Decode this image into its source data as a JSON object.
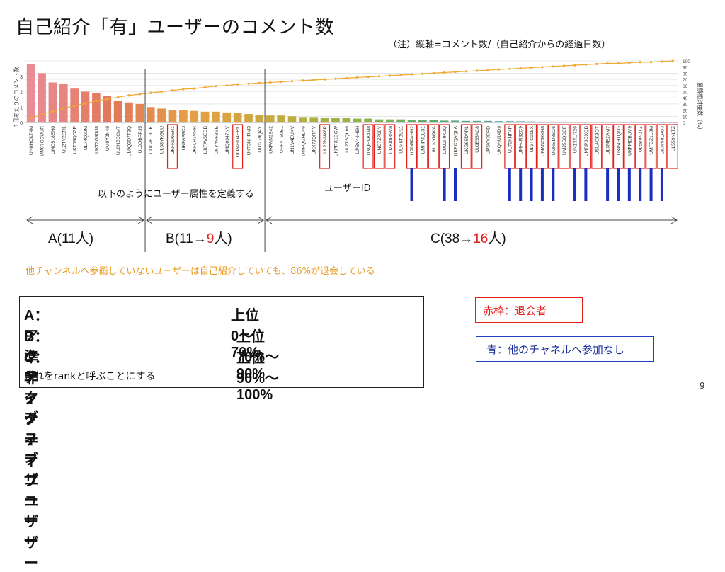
{
  "title": "自己紹介「有」ユーザーのコメント数",
  "note": "（注）縦軸=コメント数/（自己紹介からの経過日数）",
  "define_text": "以下のようにユーザー属性を定義する",
  "userid_label": "ユーザーID",
  "groups": {
    "a": {
      "prefix": "A(11人)",
      "mid": "",
      "highlight": "",
      "suffix": ""
    },
    "b": {
      "prefix": "B(11→",
      "highlight": "9",
      "suffix": "人)"
    },
    "c": {
      "prefix": "C(38→",
      "highlight": "16",
      "suffix": "人)"
    }
  },
  "orange_note": "他チャンネルへ参画していないユーザーは自己紹介していても、86%が退会している",
  "definitions": [
    {
      "name": "A：アクティブユーザー",
      "range": "上位0〜70%"
    },
    {
      "name": "B：準アクティブユーザー",
      "range": "上位70%〜90%"
    },
    {
      "name": "C：非アクティブユーザー",
      "range": "上位90%〜100%"
    }
  ],
  "rank_note": "これをrankと呼ぶことにする",
  "legend_red": "赤枠：退会者",
  "legend_blue": "青：他のチャネルへ参加なし",
  "page_number": "9",
  "colors": {
    "red": "#e0201b",
    "blue": "#1a2fc0",
    "orange_line": "#f0a830",
    "orange_text": "#e89a1e"
  },
  "chart_data": {
    "type": "bar",
    "ylabel_left": "1日あたりのコメント数",
    "ylabel_right": "累積相対度数（%）",
    "ylim_left": [
      0,
      4
    ],
    "yticks_left": [
      "0",
      "1",
      "2",
      "3"
    ],
    "ylim_right": [
      0,
      100
    ],
    "yticks_right": [
      "0",
      "10",
      "20",
      "30",
      "40",
      "50",
      "60",
      "70",
      "80",
      "90",
      "100"
    ],
    "categories": [
      "UN0HCK74M",
      "UM07CDUUR",
      "UMC518EN0",
      "UL2TY2ERL",
      "UKT59QD3P",
      "UL74Q2JM",
      "UKT3G90U8",
      "UM9Y0N49",
      "UL0NZCCMT",
      "UL0Q3D7T2Q",
      "UL0QBPPJ5",
      "ULKPET3UK",
      "UL08YKGLU",
      "UKFND0ER1",
      "UKFAP8CJ",
      "UKFLR3VHR",
      "UKFAV5EDB",
      "UKY4VFBSE",
      "UMQ0947NY",
      "ULPAHD4ERL",
      "UKT3NHRM3",
      "UL0279QAY",
      "UKPAM2942",
      "UPF4TS0E1",
      "UN1V4EUKV",
      "UMFQGHD46",
      "UKX7JQRPY",
      "UL22NNX8P",
      "UKPRX1CCW",
      "UL2TSQL66",
      "UPBV44H6H",
      "UKQHVA4M8",
      "UNC7ZP60Y",
      "UMA883SV8",
      "ULM6FBU11",
      "UPDRPAHN2",
      "UMHPJLU31",
      "UNLNYN9VA",
      "UM9JP9K0Q",
      "UKPCQAQLA",
      "UKG68DAPL",
      "UL0E55AC8",
      "UP5KY3DFD",
      "UKQHU14D9",
      "UL70KNF4P",
      "UMH4R32C9",
      "UL3TC918X",
      "UMANCHXH8",
      "UMNED86G6",
      "UMJ5SQSCF",
      "UN13XU726",
      "UMRP0GXQB",
      "USLACK8OT",
      "UL3ME2AM7",
      "UKP4HTQ1G",
      "UKFMDBUV9",
      "UL5B9NJTZ",
      "UMFDZ1L0M",
      "UKW58LPUJ",
      "UL559NLTZ"
    ],
    "values": [
      3.8,
      3.2,
      2.6,
      2.5,
      2.2,
      2.0,
      1.9,
      1.7,
      1.4,
      1.3,
      1.2,
      1.0,
      0.9,
      0.8,
      0.8,
      0.75,
      0.7,
      0.7,
      0.65,
      0.6,
      0.55,
      0.5,
      0.45,
      0.45,
      0.4,
      0.35,
      0.35,
      0.3,
      0.3,
      0.3,
      0.25,
      0.25,
      0.2,
      0.2,
      0.2,
      0.18,
      0.15,
      0.15,
      0.12,
      0.12,
      0.1,
      0.1,
      0.1,
      0.08,
      0.08,
      0.07,
      0.06,
      0.05,
      0.05,
      0.05,
      0.04,
      0.04,
      0.03,
      0.03,
      0.03,
      0.02,
      0.02,
      0.02,
      0.01,
      0.01
    ],
    "cumulative_percent": [
      7,
      13,
      18,
      23,
      27,
      31,
      35,
      38,
      41,
      44,
      46,
      48,
      50,
      52,
      54,
      55,
      57,
      59,
      60,
      62,
      63,
      64,
      65,
      66,
      67,
      68,
      69,
      70,
      71,
      72,
      73,
      74,
      75,
      76,
      77,
      78,
      79,
      80,
      81,
      82,
      83,
      84,
      85,
      86,
      87,
      88,
      89,
      90,
      91,
      92,
      93,
      94,
      95,
      96,
      96,
      97,
      98,
      98,
      99,
      100
    ],
    "red_boxed_indices": [
      13,
      19,
      27,
      31,
      32,
      33,
      35,
      36,
      37,
      38,
      40,
      41,
      44,
      45,
      46,
      47,
      48,
      49,
      50,
      51,
      52,
      53,
      54,
      55,
      56,
      57,
      58,
      59
    ],
    "blue_line_indices": [
      35,
      38,
      39,
      44,
      45,
      46,
      47,
      48,
      50,
      51,
      53,
      54,
      55,
      56,
      57,
      58
    ],
    "group_dividers_after_index": [
      10,
      21
    ]
  }
}
